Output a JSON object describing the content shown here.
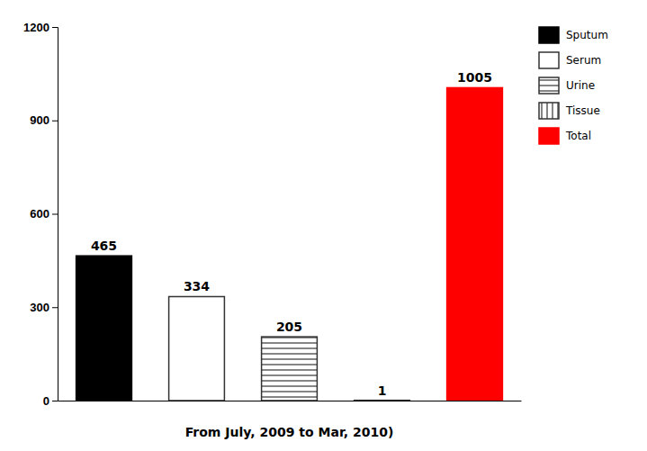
{
  "chart_data": {
    "type": "bar",
    "categories": [
      "Sputum",
      "Serum",
      "Urine",
      "Tissue",
      "Total"
    ],
    "values": [
      465,
      334,
      205,
      1,
      1005
    ],
    "colors": [
      "#000000",
      "#ffffff",
      "#ffffff",
      "#ffffff",
      "#ff0000"
    ],
    "xlabel": "From July, 2009 to Mar, 2010)",
    "ylim": [
      0,
      1200
    ],
    "yticks": [
      0,
      300,
      600,
      900,
      1200
    ],
    "data_labels": true,
    "legend": "upper right",
    "tick_labels": "y"
  }
}
